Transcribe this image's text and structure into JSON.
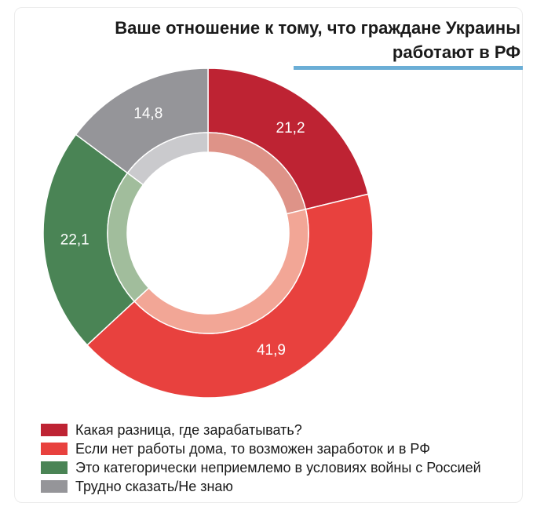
{
  "title": {
    "line1": "Ваше отношение к тому, что граждане Украины",
    "line2": "работают в РФ"
  },
  "chart_data": {
    "type": "pie",
    "subtype": "donut",
    "title": "Ваше отношение к тому, что граждане Украины работают в РФ",
    "slices": [
      {
        "label": "Какая разница, где зарабатывать?",
        "value": 21.2,
        "value_label": "21,2",
        "color": "#be2333",
        "inner_color": "#de9388"
      },
      {
        "label": "Если нет работы дома, то возможен заработок и в РФ",
        "value": 41.9,
        "value_label": "41,9",
        "color": "#e8413e",
        "inner_color": "#f2a696"
      },
      {
        "label": "Это категорически неприемлемо в условиях войны с Россией",
        "value": 22.1,
        "value_label": "22,1",
        "color": "#4a8455",
        "inner_color": "#a1bd9c"
      },
      {
        "label": "Трудно сказать/Не знаю",
        "value": 14.8,
        "value_label": "14,8",
        "color": "#959599",
        "inner_color": "#cacacd"
      }
    ],
    "legend_position": "bottom-left"
  }
}
